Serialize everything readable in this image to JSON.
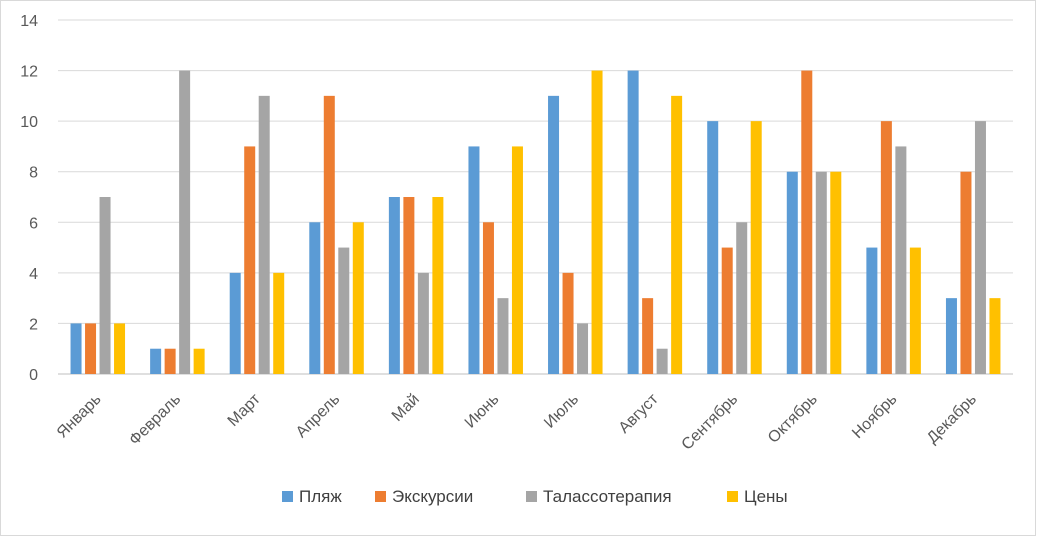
{
  "chart_data": {
    "type": "bar",
    "title": "",
    "xlabel": "",
    "ylabel": "",
    "ylim": [
      0,
      14
    ],
    "yticks": [
      "0",
      "2",
      "4",
      "6",
      "8",
      "10",
      "12",
      "14"
    ],
    "grid": true,
    "legend_position": "bottom",
    "categories": [
      "Январь",
      "Февраль",
      "Март",
      "Апрель",
      "Май",
      "Июнь",
      "Июль",
      "Август",
      "Сентябрь",
      "Октябрь",
      "Ноябрь",
      "Декабрь"
    ],
    "series": [
      {
        "name": "Пляж",
        "color": "#5b9bd5",
        "values": [
          2,
          1,
          4,
          6,
          7,
          9,
          11,
          12,
          10,
          8,
          5,
          3
        ]
      },
      {
        "name": "Экскурсии",
        "color": "#ed7d31",
        "values": [
          2,
          1,
          9,
          11,
          7,
          6,
          4,
          3,
          5,
          12,
          10,
          8
        ]
      },
      {
        "name": "Талассотерапия",
        "color": "#a5a5a5",
        "values": [
          7,
          12,
          11,
          5,
          4,
          3,
          2,
          1,
          6,
          8,
          9,
          10
        ]
      },
      {
        "name": "Цены",
        "color": "#ffc000",
        "values": [
          2,
          1,
          4,
          6,
          7,
          9,
          12,
          11,
          10,
          8,
          5,
          3
        ]
      }
    ]
  }
}
